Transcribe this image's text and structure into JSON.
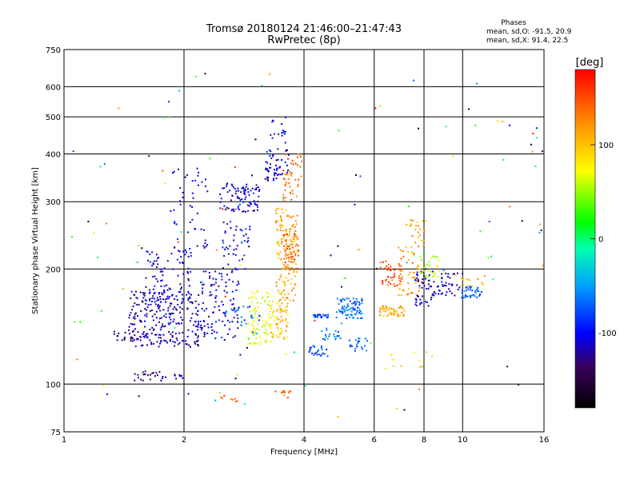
{
  "header": {
    "title_line1": "Tromsø 20180124 21:46:00–21:47:43",
    "title_line2": "RwPretec (8p)"
  },
  "stats": {
    "heading": "Phases",
    "line_o": "mean, sd,O: -91.5, 20.9",
    "line_x": "mean, sd,X:  91.4, 22.5"
  },
  "colorbar": {
    "unit_label": "[deg]",
    "ticks": [
      {
        "value": 100,
        "label": "100"
      },
      {
        "value": 0,
        "label": "0"
      },
      {
        "value": -100,
        "label": "-100"
      }
    ],
    "range": [
      -180,
      180
    ]
  },
  "chart_data": {
    "type": "scatter",
    "title": "Tromsø 20180124 21:46:00–21:47:43",
    "subtitle": "RwPretec (8p)",
    "xlabel": "Frequency [MHz]",
    "ylabel": "Stationary phase Virtual Height [km]",
    "x_scale": "log",
    "y_scale": "log",
    "xlim": [
      1,
      16
    ],
    "ylim": [
      75,
      750
    ],
    "x_ticks": [
      1,
      2,
      4,
      6,
      8,
      10,
      16
    ],
    "y_ticks": [
      75,
      100,
      200,
      300,
      400,
      500,
      600,
      750
    ],
    "grid": true,
    "color_dimension": "phase [deg]",
    "clusters": [
      {
        "x_range": [
          1.45,
          2.2
        ],
        "y_range": [
          125,
          175
        ],
        "phase": -115,
        "count": 260
      },
      {
        "x_range": [
          1.6,
          2.1
        ],
        "y_range": [
          165,
          230
        ],
        "phase": -110,
        "count": 90
      },
      {
        "x_range": [
          1.85,
          2.3
        ],
        "y_range": [
          220,
          370
        ],
        "phase": -110,
        "count": 45
      },
      {
        "x_range": [
          1.3,
          1.6
        ],
        "y_range": [
          130,
          138
        ],
        "phase": -125,
        "count": 20
      },
      {
        "x_range": [
          1.5,
          1.75
        ],
        "y_range": [
          102,
          108
        ],
        "phase": -125,
        "count": 20
      },
      {
        "x_range": [
          1.75,
          2.0
        ],
        "y_range": [
          102,
          106
        ],
        "phase": -120,
        "count": 12
      },
      {
        "x_range": [
          2.2,
          2.75
        ],
        "y_range": [
          130,
          200
        ],
        "phase": -110,
        "count": 110
      },
      {
        "x_range": [
          2.5,
          2.95
        ],
        "y_range": [
          195,
          270
        ],
        "phase": -105,
        "count": 45
      },
      {
        "x_range": [
          2.45,
          3.1
        ],
        "y_range": [
          280,
          335
        ],
        "phase": -105,
        "count": 90
      },
      {
        "x_range": [
          3.2,
          3.7
        ],
        "y_range": [
          340,
          410
        ],
        "phase": -110,
        "count": 55
      },
      {
        "x_range": [
          3.25,
          3.6
        ],
        "y_range": [
          410,
          520
        ],
        "phase": -100,
        "count": 18
      },
      {
        "x_range": [
          2.9,
          3.35
        ],
        "y_range": [
          125,
          175
        ],
        "phase": 70,
        "count": 90
      },
      {
        "x_range": [
          3.3,
          3.65
        ],
        "y_range": [
          130,
          165
        ],
        "phase": 95,
        "count": 60
      },
      {
        "x_range": [
          3.4,
          3.85
        ],
        "y_range": [
          165,
          290
        ],
        "phase": 115,
        "count": 140
      },
      {
        "x_range": [
          3.55,
          3.9
        ],
        "y_range": [
          200,
          250
        ],
        "phase": 140,
        "count": 50
      },
      {
        "x_range": [
          3.55,
          3.95
        ],
        "y_range": [
          300,
          400
        ],
        "phase": 140,
        "count": 45
      },
      {
        "x_range": [
          2.6,
          3.1
        ],
        "y_range": [
          135,
          160
        ],
        "phase": -70,
        "count": 25
      },
      {
        "x_range": [
          3.5,
          3.75
        ],
        "y_range": [
          92,
          96
        ],
        "phase": 140,
        "count": 10
      },
      {
        "x_range": [
          2.45,
          2.8
        ],
        "y_range": [
          90,
          94
        ],
        "phase": 140,
        "count": 8
      },
      {
        "x_range": [
          4.2,
          4.6
        ],
        "y_range": [
          149,
          152
        ],
        "phase": -80,
        "count": 25
      },
      {
        "x_range": [
          4.1,
          4.6
        ],
        "y_range": [
          118,
          126
        ],
        "phase": -80,
        "count": 25
      },
      {
        "x_range": [
          4.8,
          5.6
        ],
        "y_range": [
          148,
          168
        ],
        "phase": -65,
        "count": 80
      },
      {
        "x_range": [
          4.4,
          5.0
        ],
        "y_range": [
          130,
          140
        ],
        "phase": -60,
        "count": 20
      },
      {
        "x_range": [
          5.2,
          5.8
        ],
        "y_range": [
          122,
          132
        ],
        "phase": -75,
        "count": 20
      },
      {
        "x_range": [
          6.2,
          7.2
        ],
        "y_range": [
          150,
          160
        ],
        "phase": 110,
        "count": 50
      },
      {
        "x_range": [
          6.2,
          7.0
        ],
        "y_range": [
          180,
          210
        ],
        "phase": 150,
        "count": 40
      },
      {
        "x_range": [
          6.9,
          7.8
        ],
        "y_range": [
          170,
          230
        ],
        "phase": 120,
        "count": 50
      },
      {
        "x_range": [
          7.2,
          8.1
        ],
        "y_range": [
          230,
          270
        ],
        "phase": 105,
        "count": 25
      },
      {
        "x_range": [
          7.6,
          8.5
        ],
        "y_range": [
          160,
          200
        ],
        "phase": -110,
        "count": 50
      },
      {
        "x_range": [
          7.8,
          8.8
        ],
        "y_range": [
          190,
          220
        ],
        "phase": 60,
        "count": 30
      },
      {
        "x_range": [
          8.5,
          10.0
        ],
        "y_range": [
          170,
          195
        ],
        "phase": -110,
        "count": 40
      },
      {
        "x_range": [
          9.8,
          11.2
        ],
        "y_range": [
          168,
          180
        ],
        "phase": -75,
        "count": 35
      },
      {
        "x_range": [
          9.5,
          11.5
        ],
        "y_range": [
          180,
          195
        ],
        "phase": 100,
        "count": 15
      },
      {
        "x_range": [
          6.5,
          8.2
        ],
        "y_range": [
          110,
          125
        ],
        "phase": 90,
        "count": 10
      },
      {
        "x_range": [
          1.0,
          16.0
        ],
        "y_range": [
          80,
          650
        ],
        "phase": 0,
        "phase_spread": 180,
        "count": 120
      }
    ]
  }
}
